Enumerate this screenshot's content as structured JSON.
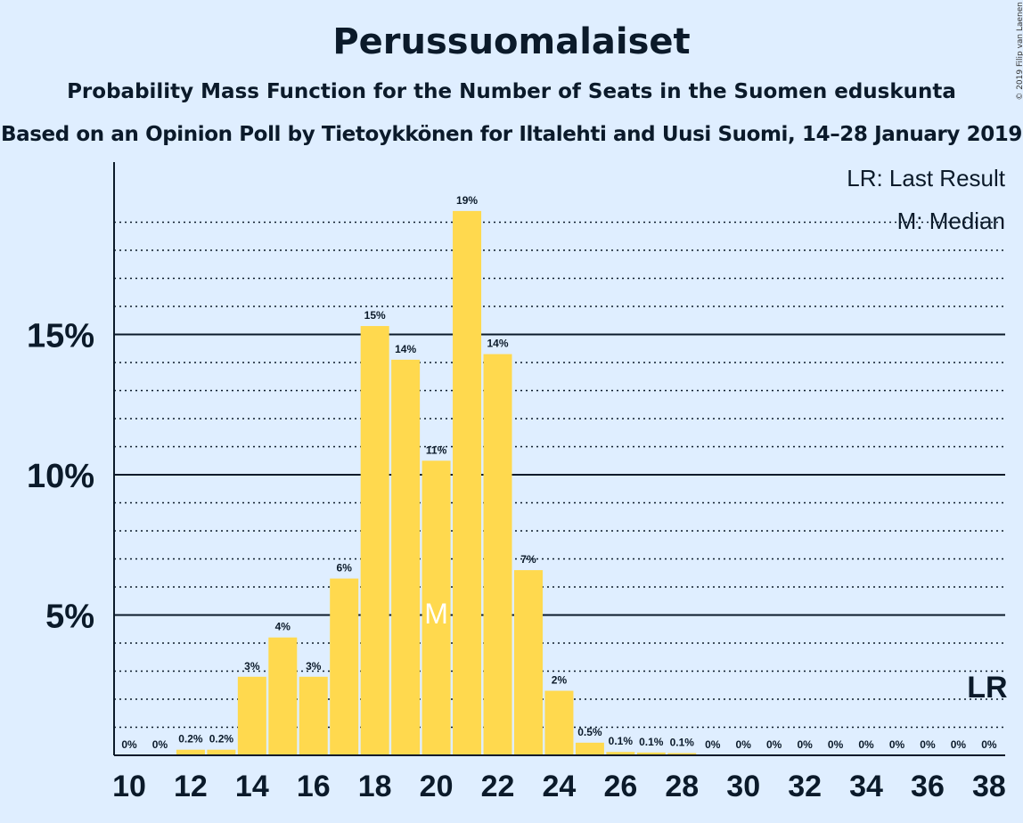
{
  "title": "Perussuomalaiset",
  "subtitle": "Probability Mass Function for the Number of Seats in the Suomen eduskunta",
  "subtitle2": "Based on an Opinion Poll by Tietoykkönen for Iltalehti and Uusi Suomi, 14–28 January 2019",
  "copyright": "© 2019 Filip van Laenen",
  "legend": {
    "lr": "LR: Last Result",
    "m": "M: Median"
  },
  "colors": {
    "background": "#dfeeff",
    "bar": "#ffd94e",
    "text": "#0b1a2a"
  },
  "chart_data": {
    "type": "bar",
    "x": [
      10,
      11,
      12,
      13,
      14,
      15,
      16,
      17,
      18,
      19,
      20,
      21,
      22,
      23,
      24,
      25,
      26,
      27,
      28,
      29,
      30,
      31,
      32,
      33,
      34,
      35,
      36,
      37,
      38
    ],
    "values": [
      0,
      0,
      0.2,
      0.2,
      2.8,
      4.2,
      2.8,
      6.3,
      15.3,
      14.1,
      10.5,
      19.4,
      14.3,
      6.6,
      2.3,
      0.45,
      0.12,
      0.1,
      0.08,
      0,
      0,
      0,
      0,
      0,
      0,
      0,
      0,
      0,
      0
    ],
    "data_labels": [
      "0%",
      "0%",
      "0.2%",
      "0.2%",
      "3%",
      "4%",
      "3%",
      "6%",
      "15%",
      "14%",
      "11%",
      "19%",
      "14%",
      "7%",
      "2%",
      "0.5%",
      "0.1%",
      "0.1%",
      "0.1%",
      "0%",
      "0%",
      "0%",
      "0%",
      "0%",
      "0%",
      "0%",
      "0%",
      "0%",
      "0%"
    ],
    "x_tick_labels": [
      "10",
      "12",
      "14",
      "16",
      "18",
      "20",
      "22",
      "24",
      "26",
      "28",
      "30",
      "32",
      "34",
      "36",
      "38"
    ],
    "y_tick_labels": [
      "5%",
      "10%",
      "15%"
    ],
    "y_ticks": [
      5,
      10,
      15
    ],
    "ylim": [
      0,
      21
    ],
    "median": 20,
    "median_marker": "M",
    "last_result": 38,
    "last_result_marker": "LR",
    "xlabel": "",
    "ylabel": ""
  }
}
